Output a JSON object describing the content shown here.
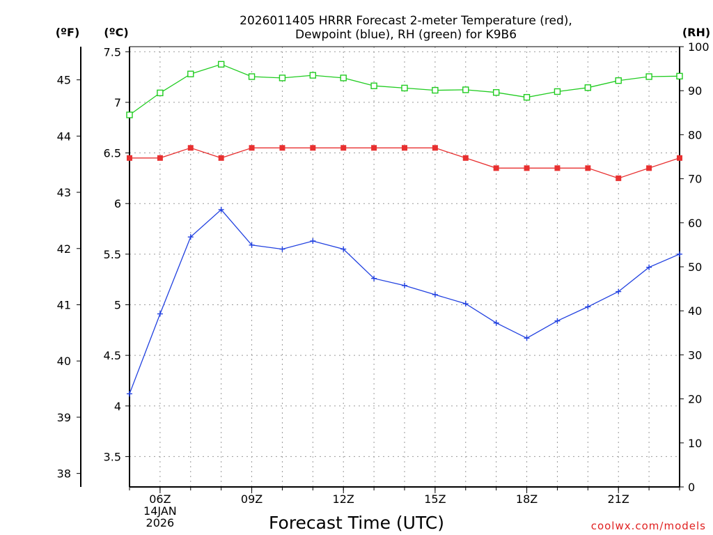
{
  "chart_data": {
    "type": "line",
    "title": [
      "2026011405 HRRR Forecast 2-meter Temperature (red),",
      "Dewpoint (blue), RH (green) for K9B6"
    ],
    "xlabel": "Forecast Time (UTC)",
    "units": {
      "fahrenheit": "(ºF)",
      "celsius": "(ºC)",
      "rh": "(RH)"
    },
    "credit": "coolwx.com/models",
    "x_hours": [
      5,
      6,
      7,
      8,
      9,
      10,
      11,
      12,
      13,
      14,
      15,
      16,
      17,
      18,
      19,
      20,
      21,
      22,
      23
    ],
    "x_ticks": [
      {
        "hour": 6,
        "lines": [
          "06Z",
          "14JAN",
          "2026"
        ]
      },
      {
        "hour": 9,
        "lines": [
          "09Z"
        ]
      },
      {
        "hour": 12,
        "lines": [
          "12Z"
        ]
      },
      {
        "hour": 15,
        "lines": [
          "15Z"
        ]
      },
      {
        "hour": 18,
        "lines": [
          "18Z"
        ]
      },
      {
        "hour": 21,
        "lines": [
          "21Z"
        ]
      }
    ],
    "xlim": [
      5,
      23
    ],
    "celsius_axis": {
      "ylim": [
        3.2,
        7.55
      ],
      "ticks": [
        3.5,
        4,
        4.5,
        5,
        5.5,
        6,
        6.5,
        7,
        7.5
      ],
      "tick_labels": [
        "3.5",
        "4",
        "4.5",
        "5",
        "5.5",
        "6",
        "6.5",
        "7",
        "7.5"
      ]
    },
    "fahrenheit_axis": {
      "ticks": [
        38,
        39,
        40,
        41,
        42,
        43,
        44,
        45
      ],
      "tick_labels": [
        "38",
        "39",
        "40",
        "41",
        "42",
        "43",
        "44",
        "45"
      ]
    },
    "rh_axis": {
      "ylim": [
        0,
        100
      ],
      "ticks": [
        0,
        10,
        20,
        30,
        40,
        50,
        60,
        70,
        80,
        90,
        100
      ],
      "tick_labels": [
        "0",
        "10",
        "20",
        "30",
        "40",
        "50",
        "60",
        "70",
        "80",
        "90",
        "100"
      ]
    },
    "series": [
      {
        "name": "Temperature",
        "axis": "celsius",
        "color": "#e83030",
        "marker": "square-filled",
        "values": [
          6.45,
          6.45,
          6.55,
          6.45,
          6.55,
          6.55,
          6.55,
          6.55,
          6.55,
          6.55,
          6.55,
          6.45,
          6.35,
          6.35,
          6.35,
          6.35,
          6.25,
          6.35,
          6.45
        ]
      },
      {
        "name": "Dewpoint",
        "axis": "celsius",
        "color": "#2040e0",
        "marker": "plus",
        "values": [
          4.12,
          4.91,
          5.67,
          5.94,
          5.59,
          5.55,
          5.63,
          5.55,
          5.26,
          5.19,
          5.1,
          5.01,
          4.82,
          4.67,
          4.84,
          4.98,
          5.13,
          5.37,
          5.5
        ]
      },
      {
        "name": "Relative Humidity",
        "axis": "rh",
        "color": "#20cc20",
        "marker": "square-open",
        "values": [
          84.5,
          89.5,
          93.8,
          96.0,
          93.2,
          92.9,
          93.5,
          92.9,
          91.1,
          90.6,
          90.1,
          90.2,
          89.6,
          88.5,
          89.8,
          90.7,
          92.3,
          93.2,
          93.3
        ]
      }
    ]
  }
}
